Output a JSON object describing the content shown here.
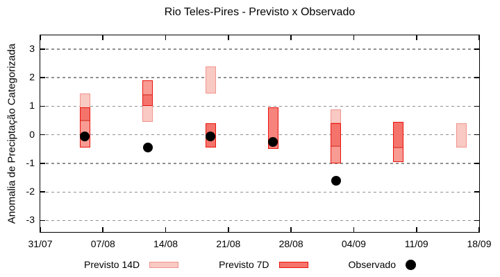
{
  "title": "Rio Teles-Pires - Previsto x Observado",
  "y_axis": {
    "label": "Anomalia de Preciptação Categorizada",
    "tick_labels": [
      "3",
      "2",
      "1",
      "0",
      "-1",
      "-2",
      "-3"
    ]
  },
  "x_axis": {
    "tick_labels": [
      "31/07",
      "07/08",
      "14/08",
      "21/08",
      "28/08",
      "04/09",
      "11/09",
      "18/09"
    ]
  },
  "legend": {
    "items": [
      {
        "label": "Previsto 14D",
        "swatch": "pink-box-swatch"
      },
      {
        "label": "Previsto 7D",
        "swatch": "red-box-swatch"
      },
      {
        "label": "Observado",
        "swatch": "black-dot-swatch"
      }
    ]
  },
  "colors": {
    "pink_fill": "#f9c9c3",
    "pink_border": "#f1948d",
    "red_border": "#e9120b",
    "red_dark": "#f4746c",
    "red_mid": "#f6837c",
    "red_light": "#f79b93",
    "median_line": "#e25549",
    "observado_dot": "#000000",
    "grid": "#8f8f8f",
    "axis": "#000000"
  },
  "chart_data": {
    "type": "candlestick",
    "title": "Rio Teles-Pires - Previsto x Observado",
    "xlabel": "",
    "ylabel": "Anomalia de Preciptação Categorizada",
    "ylim": [
      -3.4,
      3.48
    ],
    "x_range_days": 49,
    "x_tick_days": [
      0,
      7,
      14,
      21,
      28,
      35,
      42,
      49
    ],
    "x_tick_labels": [
      "31/07",
      "07/08",
      "14/08",
      "21/08",
      "28/08",
      "04/09",
      "11/09",
      "18/09"
    ],
    "y_ticks": [
      3,
      2,
      1,
      0,
      -1,
      -2,
      -3
    ],
    "grid": "horizontal-dashed",
    "legend_position": "below",
    "series": [
      {
        "name": "Previsto 14D",
        "type": "range-bar",
        "points": [
          {
            "date": "05/08",
            "day": 5,
            "low": -0.45,
            "high": 1.45
          },
          {
            "date": "12/08",
            "day": 12,
            "low": 0.45,
            "high": 1.9
          },
          {
            "date": "19/08",
            "day": 19,
            "low": 1.45,
            "high": 2.4
          },
          {
            "date": "02/09",
            "day": 33,
            "low": 0.4,
            "high": 0.9
          },
          {
            "date": "16/09",
            "day": 47,
            "low": -0.45,
            "high": 0.4
          }
        ]
      },
      {
        "name": "Previsto 7D",
        "type": "range-bar",
        "points": [
          {
            "date": "05/08",
            "day": 5,
            "low": -0.45,
            "high": 0.95,
            "median": 0.5,
            "upper_shade": "dark",
            "lower_shade": "light"
          },
          {
            "date": "12/08",
            "day": 12,
            "low": 1.0,
            "high": 1.9,
            "median": 1.4,
            "upper_shade": "light",
            "lower_shade": "dark"
          },
          {
            "date": "19/08",
            "day": 19,
            "low": -0.45,
            "high": 0.4,
            "median": null,
            "upper_shade": "dark",
            "lower_shade": "dark"
          },
          {
            "date": "26/08",
            "day": 26,
            "low": -0.5,
            "high": 0.95,
            "median": null,
            "upper_shade": "mid",
            "lower_shade": "mid"
          },
          {
            "date": "02/09",
            "day": 33,
            "low": -1.0,
            "high": 0.4,
            "median": -0.4,
            "upper_shade": "dark",
            "lower_shade": "light"
          },
          {
            "date": "09/09",
            "day": 40,
            "low": -0.95,
            "high": 0.45,
            "median": -0.45,
            "upper_shade": "dark",
            "lower_shade": "light"
          }
        ]
      },
      {
        "name": "Observado",
        "type": "scatter",
        "points": [
          {
            "date": "05/08",
            "day": 5,
            "value": -0.05
          },
          {
            "date": "12/08",
            "day": 12,
            "value": -0.45
          },
          {
            "date": "19/08",
            "day": 19,
            "value": -0.05
          },
          {
            "date": "26/08",
            "day": 26,
            "value": -0.25
          },
          {
            "date": "02/09",
            "day": 33,
            "value": -1.6
          }
        ]
      }
    ]
  }
}
